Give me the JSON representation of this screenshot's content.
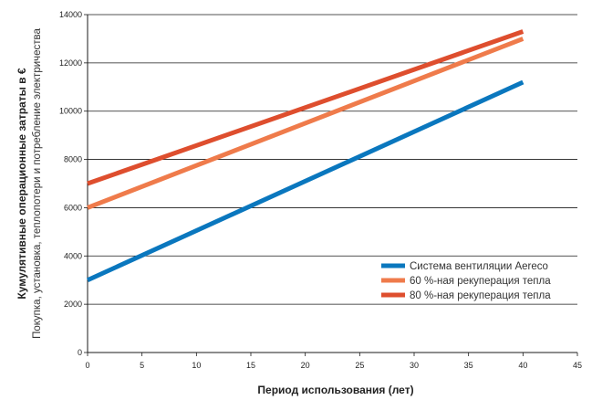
{
  "chart_data": {
    "type": "line",
    "xlabel": "Период использования (лет)",
    "ylabel": "Кумулятивные операционные затраты в €",
    "ylabel_secondary": "Покупка, установка, теплопотери и потребление электричества",
    "xlim": [
      0,
      45
    ],
    "ylim": [
      0,
      14000
    ],
    "x_ticks": [
      0,
      5,
      10,
      15,
      20,
      25,
      30,
      35,
      40,
      45
    ],
    "y_ticks": [
      0,
      2000,
      4000,
      6000,
      8000,
      10000,
      12000,
      14000
    ],
    "grid": "horizontal",
    "legend_position": "bottom-right",
    "series": [
      {
        "name": "Система вентиляции Aereco",
        "color": "#0a77be",
        "x": [
          0,
          40
        ],
        "y": [
          3000,
          11200
        ]
      },
      {
        "name": "60 %-ная рекуперация тепла",
        "color": "#ef7b4b",
        "x": [
          0,
          40
        ],
        "y": [
          6000,
          13000
        ]
      },
      {
        "name": "80 %-ная рекуперация тепла",
        "color": "#de4e2e",
        "x": [
          0,
          40
        ],
        "y": [
          7000,
          13300
        ]
      }
    ]
  }
}
